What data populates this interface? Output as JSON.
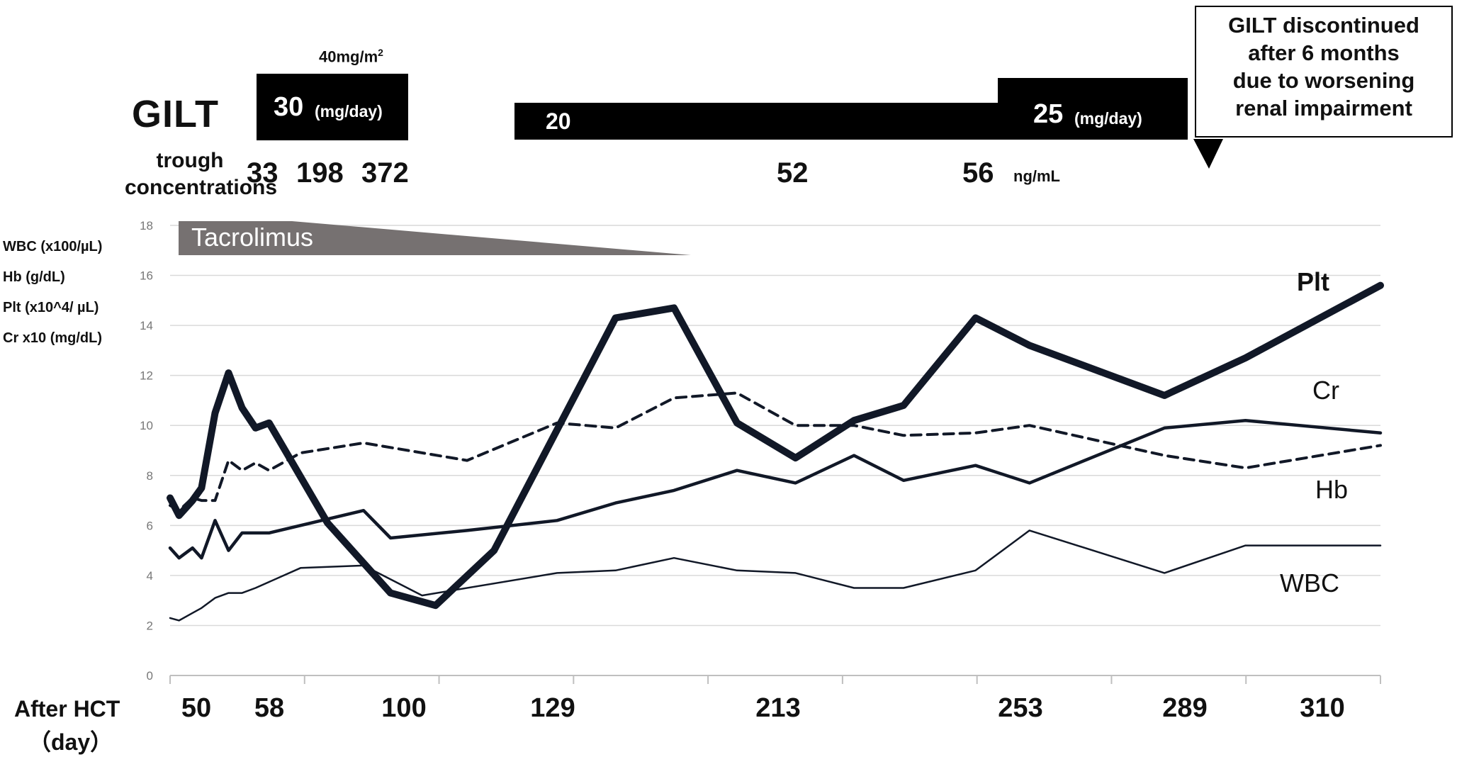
{
  "gilt": {
    "title": "GILT",
    "dose_top_note_main": "40mg/m",
    "dose_top_note_sup": "2",
    "period1": {
      "value": "30",
      "unit": "(mg/day)"
    },
    "period2": {
      "value": "20"
    },
    "period3": {
      "value": "25",
      "unit": "(mg/day)"
    },
    "trough_label_1": "trough",
    "trough_label_2": "concentrations",
    "trough_values": [
      "33",
      "198",
      "372",
      "52",
      "56"
    ],
    "trough_unit": "ng/mL",
    "callout_lines": [
      "GILT discontinued",
      "after 6 months",
      "due to worsening",
      "renal impairment"
    ]
  },
  "tacrolimus_label": "Tacrolimus",
  "y_axis_labels": [
    "WBC (x100/µL)",
    "Hb (g/dL)",
    "Plt (x10^4/ µL)",
    "Cr x10 (mg/dL)"
  ],
  "x_axis_label_1": "After HCT",
  "x_axis_label_2": "（day）",
  "x_tick_labels": [
    "50",
    "58",
    "100",
    "129",
    "213",
    "253",
    "289",
    "310"
  ],
  "chart_data": {
    "type": "line",
    "ylim": [
      0,
      18
    ],
    "y_ticks": [
      "0",
      "2",
      "4",
      "6",
      "8",
      "10",
      "12",
      "14",
      "16",
      "18"
    ],
    "grid": true,
    "x_unit": "day after HCT",
    "series": [
      {
        "name": "Plt",
        "style": "thick-solid",
        "points": [
          [
            41,
            7.1
          ],
          [
            43,
            6.4
          ],
          [
            46,
            7.0
          ],
          [
            48,
            7.5
          ],
          [
            51,
            10.5
          ],
          [
            54,
            12.1
          ],
          [
            57,
            10.7
          ],
          [
            60,
            9.9
          ],
          [
            63,
            10.1
          ],
          [
            76,
            6.1
          ],
          [
            90,
            3.3
          ],
          [
            100,
            2.8
          ],
          [
            113,
            5.0
          ],
          [
            140,
            14.3
          ],
          [
            153,
            14.7
          ],
          [
            167,
            10.1
          ],
          [
            180,
            8.7
          ],
          [
            193,
            10.2
          ],
          [
            204,
            10.8
          ],
          [
            220,
            14.3
          ],
          [
            232,
            13.2
          ],
          [
            262,
            11.2
          ],
          [
            280,
            12.7
          ],
          [
            310,
            15.6
          ]
        ]
      },
      {
        "name": "Cr",
        "style": "dashed",
        "points": [
          [
            41,
            6.8
          ],
          [
            43,
            6.6
          ],
          [
            46,
            7.1
          ],
          [
            48,
            7.0
          ],
          [
            51,
            7.0
          ],
          [
            54,
            8.6
          ],
          [
            57,
            8.2
          ],
          [
            60,
            8.5
          ],
          [
            63,
            8.2
          ],
          [
            70,
            8.9
          ],
          [
            84,
            9.3
          ],
          [
            107,
            8.6
          ],
          [
            127,
            10.1
          ],
          [
            140,
            9.9
          ],
          [
            153,
            11.1
          ],
          [
            167,
            11.3
          ],
          [
            180,
            10.0
          ],
          [
            193,
            10.0
          ],
          [
            204,
            9.6
          ],
          [
            220,
            9.7
          ],
          [
            232,
            10.0
          ],
          [
            262,
            8.8
          ],
          [
            280,
            8.3
          ],
          [
            310,
            9.2
          ]
        ]
      },
      {
        "name": "Hb",
        "style": "medium-solid",
        "points": [
          [
            41,
            5.1
          ],
          [
            43,
            4.7
          ],
          [
            46,
            5.1
          ],
          [
            48,
            4.7
          ],
          [
            51,
            6.2
          ],
          [
            54,
            5.0
          ],
          [
            57,
            5.7
          ],
          [
            60,
            5.7
          ],
          [
            63,
            5.7
          ],
          [
            84,
            6.6
          ],
          [
            90,
            5.5
          ],
          [
            107,
            5.8
          ],
          [
            127,
            6.2
          ],
          [
            140,
            6.9
          ],
          [
            153,
            7.4
          ],
          [
            167,
            8.2
          ],
          [
            180,
            7.7
          ],
          [
            193,
            8.8
          ],
          [
            204,
            7.8
          ],
          [
            220,
            8.4
          ],
          [
            232,
            7.7
          ],
          [
            262,
            9.9
          ],
          [
            280,
            10.2
          ],
          [
            310,
            9.7
          ]
        ]
      },
      {
        "name": "WBC",
        "style": "thin-solid",
        "points": [
          [
            41,
            2.3
          ],
          [
            43,
            2.2
          ],
          [
            46,
            2.5
          ],
          [
            48,
            2.7
          ],
          [
            51,
            3.1
          ],
          [
            54,
            3.3
          ],
          [
            57,
            3.3
          ],
          [
            60,
            3.5
          ],
          [
            70,
            4.3
          ],
          [
            84,
            4.4
          ],
          [
            97,
            3.2
          ],
          [
            127,
            4.1
          ],
          [
            140,
            4.2
          ],
          [
            153,
            4.7
          ],
          [
            167,
            4.2
          ],
          [
            180,
            4.1
          ],
          [
            193,
            3.5
          ],
          [
            204,
            3.5
          ],
          [
            220,
            4.2
          ],
          [
            232,
            5.8
          ],
          [
            262,
            4.1
          ],
          [
            280,
            5.2
          ],
          [
            310,
            5.2
          ]
        ]
      }
    ]
  }
}
